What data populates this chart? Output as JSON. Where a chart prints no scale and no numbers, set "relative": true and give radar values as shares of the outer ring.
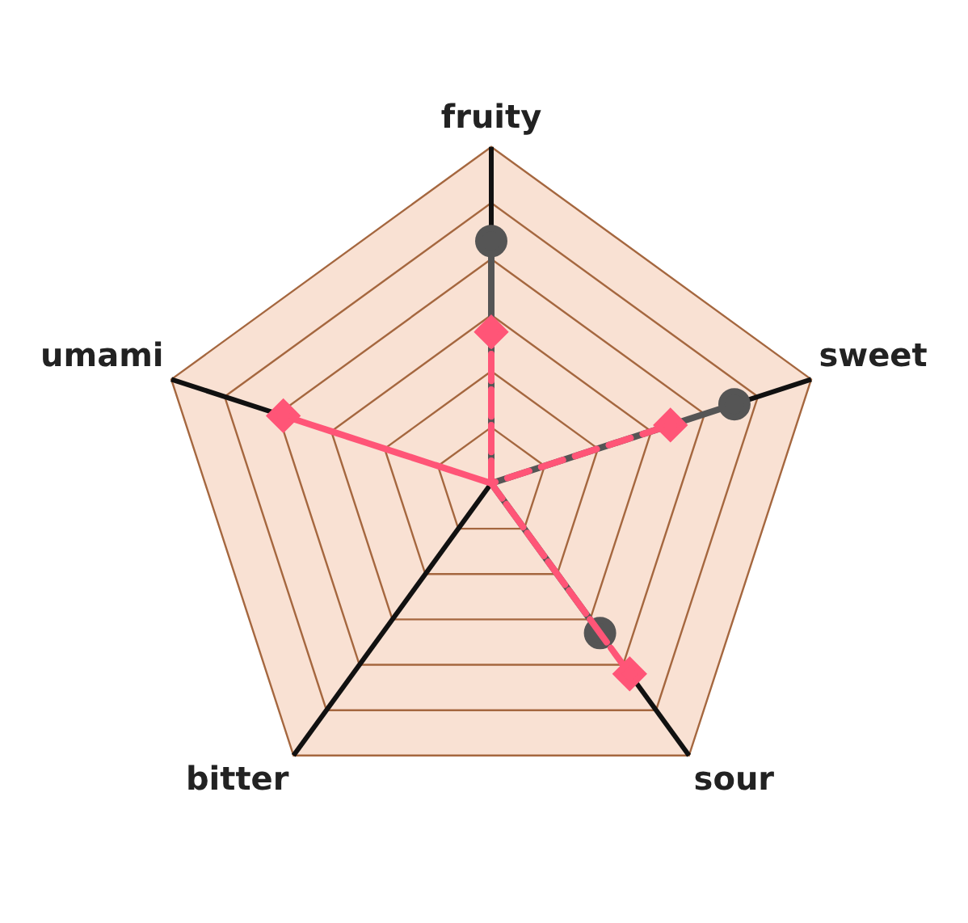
{
  "chart_data": {
    "type": "radar",
    "categories": [
      "fruity",
      "sweet",
      "sour",
      "bitter",
      "umami"
    ],
    "relative": true,
    "grid": true,
    "legend": false,
    "series": [
      {
        "color": "#555555",
        "marker": "circle",
        "line_style": "solid",
        "values": [
          0.72,
          0.76,
          0.55,
          null,
          null
        ]
      },
      {
        "color": "#ff5577",
        "marker": "diamond",
        "line_style": "dashed",
        "values": [
          0.45,
          0.56,
          0.7,
          null,
          0.65
        ]
      }
    ]
  }
}
